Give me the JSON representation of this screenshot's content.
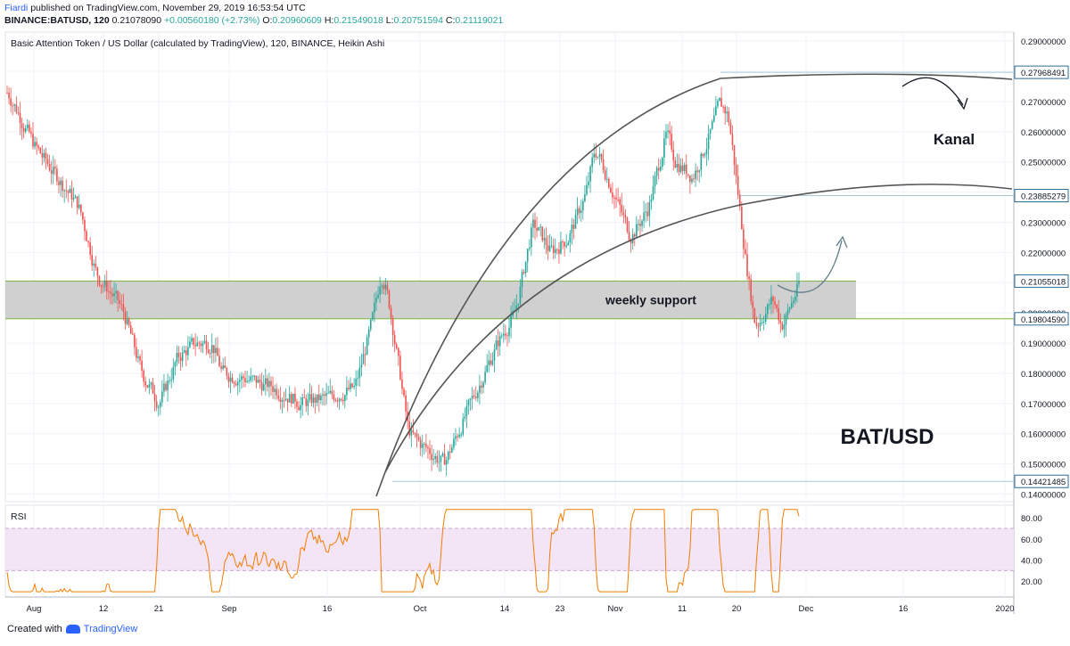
{
  "header": {
    "author": "Fiardi",
    "published_text": "published on TradingView.com, November 29, 2019 16:53:54 UTC",
    "symbol": "BINANCE:BATUSD, 120",
    "last": "0.21078090",
    "change": "+0.00560180 (+2.73%)",
    "o_label": "O:",
    "o": "0.20960609",
    "h_label": "H:",
    "h": "0.21549018",
    "l_label": "L:",
    "l": "0.20751594",
    "c_label": "C:",
    "c": "0.21119021"
  },
  "footer": {
    "created_with": "Created with",
    "brand": "TradingView"
  },
  "colors": {
    "up": "#26a69a",
    "down": "#ef5350",
    "support_band": "#c8c8c8",
    "rsi_line": "#f57c00",
    "rsi_band": "#f3e5f5",
    "hline": "#a7cbd9",
    "curve": "#555555"
  },
  "chart_data": [
    {
      "type": "candlestick",
      "title": "Basic Attention Token / US Dollar (calculated by TradingView), 120, BINANCE, Heikin Ashi",
      "ylim": [
        0.1375,
        0.293
      ],
      "y_ticks": [
        "0.29000000",
        "0.28000000",
        "0.27000000",
        "0.26000000",
        "0.25000000",
        "0.24000000",
        "0.23000000",
        "0.22000000",
        "0.21000000",
        "0.20000000",
        "0.19000000",
        "0.18000000",
        "0.17000000",
        "0.16000000",
        "0.15000000",
        "0.14000000"
      ],
      "x_ticks": [
        "Aug",
        "12",
        "21",
        "Sep",
        "16",
        "Oct",
        "14",
        "23",
        "Nov",
        "11",
        "20",
        "Dec",
        "16",
        "2020"
      ],
      "price_labels": [
        {
          "value": 0.27968491,
          "text": "0.27968491",
          "highlight": true
        },
        {
          "value": 0.23885279,
          "text": "0.23885279",
          "highlight": true
        },
        {
          "value": 0.21055018,
          "text": "0.21055018",
          "highlight": true
        },
        {
          "value": 0.1980459,
          "text": "0.19804590",
          "highlight": true
        },
        {
          "value": 0.14421485,
          "text": "0.14421485",
          "highlight": true
        }
      ],
      "support_zone": {
        "low": 0.1980459,
        "high": 0.2105502,
        "label": "weekly support"
      },
      "annotations": [
        "Kanal",
        "BAT/USD"
      ],
      "price_path": [
        [
          0,
          0.273
        ],
        [
          3,
          0.255
        ],
        [
          8,
          0.235
        ],
        [
          10,
          0.212
        ],
        [
          12,
          0.205
        ],
        [
          13,
          0.2
        ],
        [
          15,
          0.18
        ],
        [
          17,
          0.17
        ],
        [
          19,
          0.185
        ],
        [
          21,
          0.19
        ],
        [
          23,
          0.19
        ],
        [
          24,
          0.18
        ],
        [
          27,
          0.178
        ],
        [
          30,
          0.175
        ],
        [
          33,
          0.17
        ],
        [
          36,
          0.172
        ],
        [
          39,
          0.175
        ],
        [
          41,
          0.198
        ],
        [
          42,
          0.215
        ],
        [
          43,
          0.2
        ],
        [
          45,
          0.16
        ],
        [
          47,
          0.155
        ],
        [
          49,
          0.15
        ],
        [
          52,
          0.17
        ],
        [
          55,
          0.19
        ],
        [
          57,
          0.2
        ],
        [
          59,
          0.23
        ],
        [
          61,
          0.22
        ],
        [
          63,
          0.225
        ],
        [
          65,
          0.24
        ],
        [
          66,
          0.255
        ],
        [
          68,
          0.24
        ],
        [
          70,
          0.225
        ],
        [
          72,
          0.235
        ],
        [
          74,
          0.26
        ],
        [
          75,
          0.25
        ],
        [
          77,
          0.245
        ],
        [
          79,
          0.26
        ],
        [
          80,
          0.27
        ],
        [
          81,
          0.265
        ],
        [
          82,
          0.24
        ],
        [
          83,
          0.215
        ],
        [
          84,
          0.195
        ],
        [
          86,
          0.205
        ],
        [
          87,
          0.195
        ],
        [
          88,
          0.203
        ],
        [
          89,
          0.21
        ]
      ]
    },
    {
      "type": "line",
      "title": "RSI",
      "ylim": [
        5,
        92
      ],
      "y_ticks": [
        "80.00",
        "60.00",
        "40.00",
        "20.00"
      ],
      "band": [
        30,
        70
      ],
      "levels": [
        30,
        70
      ]
    }
  ]
}
